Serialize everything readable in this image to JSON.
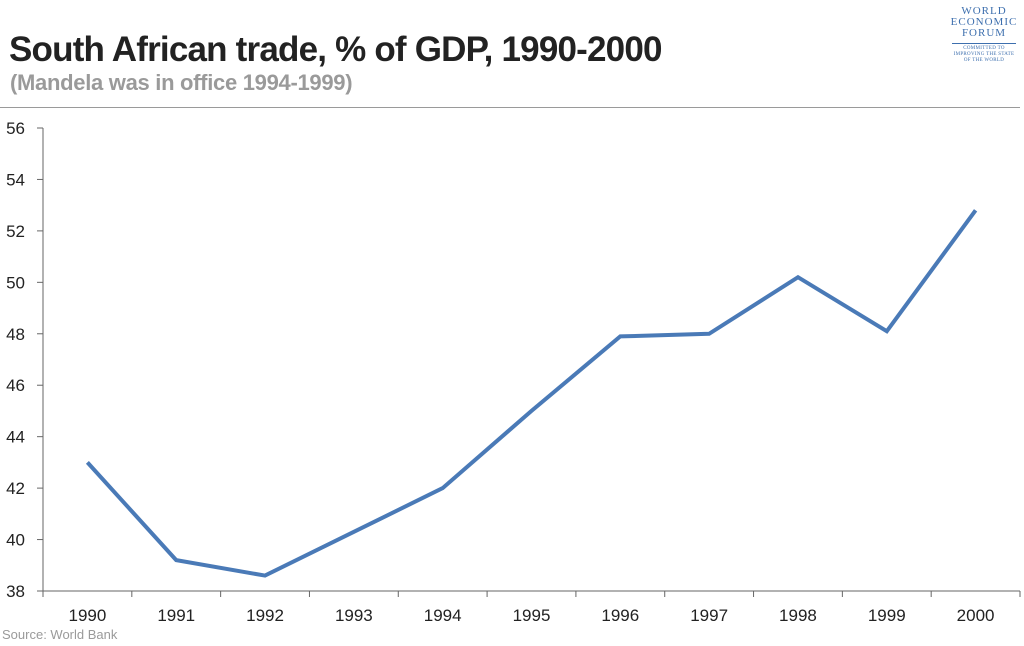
{
  "header": {
    "title": "South African trade, % of GDP, 1990-2000",
    "subtitle": "(Mandela was in office 1994-1999)"
  },
  "logo": {
    "line1": "WORLD",
    "line2": "ECONOMIC",
    "line3": "FORUM",
    "tagline1": "COMMITTED TO",
    "tagline2": "IMPROVING THE STATE",
    "tagline3": "OF THE WORLD"
  },
  "footer": {
    "source": "Source: World Bank"
  },
  "colors": {
    "line": "#4a7ab7",
    "axis": "#666666",
    "title": "#222222",
    "muted": "#9a9a9a"
  },
  "chart_data": {
    "type": "line",
    "x": [
      "1990",
      "1991",
      "1992",
      "1993",
      "1994",
      "1995",
      "1996",
      "1997",
      "1998",
      "1999",
      "2000"
    ],
    "series": [
      {
        "values": [
          43.0,
          39.2,
          38.6,
          40.3,
          42.0,
          45.0,
          47.9,
          48.0,
          50.2,
          48.1,
          52.8
        ]
      }
    ],
    "ylim": [
      38,
      56
    ],
    "yticks": [
      "38",
      "40",
      "42",
      "44",
      "46",
      "48",
      "50",
      "52",
      "54",
      "56"
    ],
    "grid": false,
    "legend": "none"
  }
}
